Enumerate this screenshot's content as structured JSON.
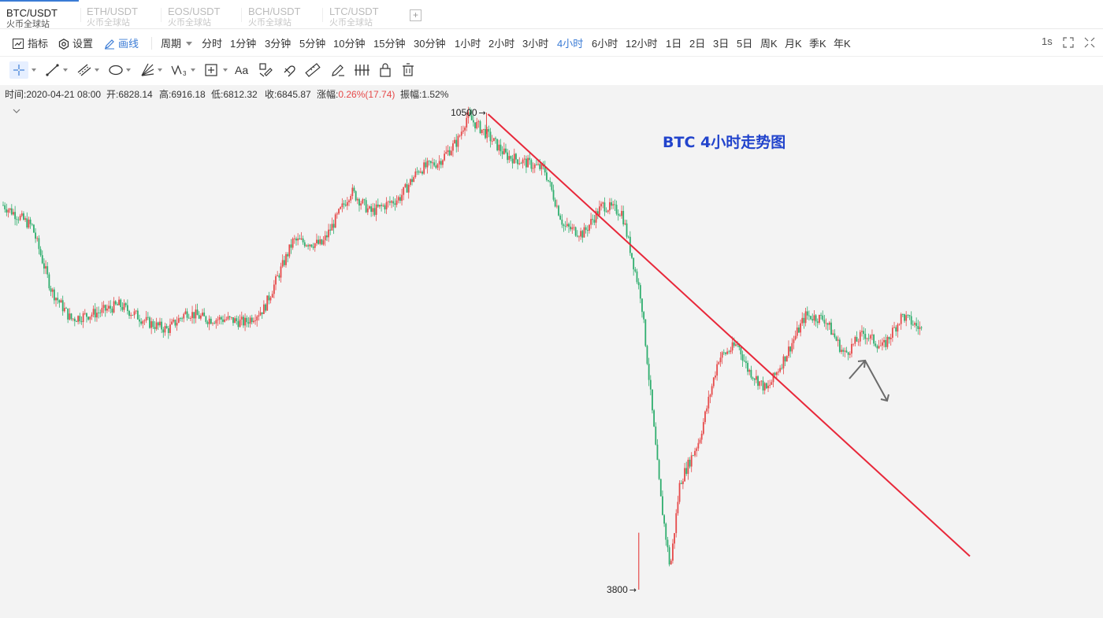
{
  "tabs": [
    {
      "symbol": "BTC/USDT",
      "exchange": "火币全球站",
      "active": true
    },
    {
      "symbol": "ETH/USDT",
      "exchange": "火币全球站",
      "active": false
    },
    {
      "symbol": "EOS/USDT",
      "exchange": "火币全球站",
      "active": false
    },
    {
      "symbol": "BCH/USDT",
      "exchange": "火币全球站",
      "active": false
    },
    {
      "symbol": "LTC/USDT",
      "exchange": "火币全球站",
      "active": false
    }
  ],
  "add_tab_label": "+",
  "toolbar": {
    "indicators_label": "指标",
    "settings_label": "设置",
    "draw_label": "画线",
    "period_label": "周期",
    "periods": [
      "分时",
      "1分钟",
      "3分钟",
      "5分钟",
      "10分钟",
      "15分钟",
      "30分钟",
      "1小时",
      "2小时",
      "3小时",
      "4小时",
      "6小时",
      "12小时",
      "1日",
      "2日",
      "3日",
      "5日",
      "周K",
      "月K",
      "季K",
      "年K"
    ],
    "active_period": "4小时",
    "refresh_label": "1s"
  },
  "drawing_tools": [
    "crosshair-icon",
    "line-icon",
    "parallel-channel-icon",
    "ellipse-icon",
    "fib-fan-icon",
    "wave-icon",
    "measure-box-icon",
    "text-icon",
    "brush-icon",
    "magnet-icon",
    "ruler-icon",
    "pen-icon",
    "bars-icon",
    "lock-icon",
    "trash-icon"
  ],
  "text_tool_label": "Aa",
  "wave_tool_sub": "3",
  "info": {
    "time": "时间:2020-04-21 08:00",
    "open": "开:6828.14",
    "high": "高:6916.18",
    "low": "低:6812.32",
    "close": "收:6845.87",
    "change_label": "涨幅:",
    "change_value": "0.26%(17.74)",
    "amplitude": "振幅:1.52%"
  },
  "chart_annotation": "BTC 4小时走势图",
  "colors": {
    "up": "#e64a4a",
    "down": "#2fae6e",
    "accent": "#3a7bd5",
    "trendline": "#e8283a",
    "annotation": "#2244cc"
  },
  "chart_data": {
    "type": "candlestick",
    "max_label": "10500",
    "min_label": "3800",
    "max_value": 10500,
    "min_value": 3800,
    "ylim": [
      3800,
      10500
    ],
    "trend_points": [
      [
        0,
        9200
      ],
      [
        0.03,
        8900
      ],
      [
        0.05,
        8000
      ],
      [
        0.07,
        7600
      ],
      [
        0.1,
        7700
      ],
      [
        0.12,
        7800
      ],
      [
        0.15,
        7550
      ],
      [
        0.17,
        7450
      ],
      [
        0.19,
        7700
      ],
      [
        0.21,
        7600
      ],
      [
        0.23,
        7600
      ],
      [
        0.25,
        7550
      ],
      [
        0.27,
        7750
      ],
      [
        0.3,
        8700
      ],
      [
        0.33,
        8650
      ],
      [
        0.36,
        9400
      ],
      [
        0.38,
        9100
      ],
      [
        0.41,
        9300
      ],
      [
        0.43,
        9700
      ],
      [
        0.45,
        9800
      ],
      [
        0.47,
        10100
      ],
      [
        0.48,
        10450
      ],
      [
        0.5,
        10200
      ],
      [
        0.52,
        9900
      ],
      [
        0.54,
        9800
      ],
      [
        0.56,
        9700
      ],
      [
        0.58,
        8900
      ],
      [
        0.6,
        8800
      ],
      [
        0.62,
        9200
      ],
      [
        0.64,
        9100
      ],
      [
        0.66,
        7900
      ],
      [
        0.68,
        5100
      ],
      [
        0.69,
        4100
      ],
      [
        0.7,
        5300
      ],
      [
        0.72,
        5900
      ],
      [
        0.74,
        7050
      ],
      [
        0.76,
        7250
      ],
      [
        0.77,
        6900
      ],
      [
        0.79,
        6600
      ],
      [
        0.81,
        7100
      ],
      [
        0.83,
        7650
      ],
      [
        0.85,
        7600
      ],
      [
        0.87,
        7100
      ],
      [
        0.89,
        7400
      ],
      [
        0.91,
        7200
      ],
      [
        0.93,
        7650
      ],
      [
        0.95,
        7450
      ]
    ],
    "trendline": [
      [
        0.5,
        10500
      ],
      [
        1.0,
        4900
      ]
    ],
    "projection_arrows": [
      "up",
      "down"
    ]
  }
}
